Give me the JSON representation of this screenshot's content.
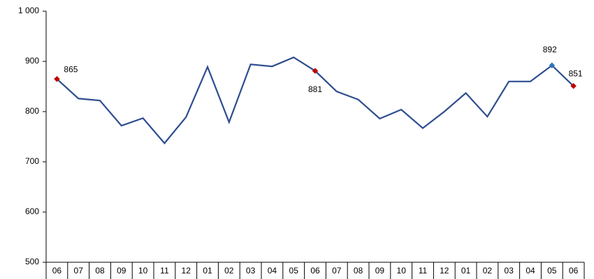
{
  "chart_data": {
    "type": "line",
    "categories": [
      "06",
      "07",
      "08",
      "09",
      "10",
      "11",
      "12",
      "01",
      "02",
      "03",
      "04",
      "05",
      "06",
      "07",
      "08",
      "09",
      "10",
      "11",
      "12",
      "01",
      "02",
      "03",
      "04",
      "05",
      "06"
    ],
    "series": [
      {
        "color": "#2e4d8f",
        "values": [
          865,
          826,
          822,
          772,
          787,
          737,
          789,
          889,
          779,
          894,
          890,
          908,
          881,
          840,
          824,
          786,
          804,
          767,
          800,
          837,
          790,
          860,
          860,
          892,
          851
        ],
        "value_labels": [
          "865",
          null,
          null,
          null,
          null,
          null,
          null,
          null,
          null,
          null,
          null,
          null,
          "881",
          null,
          null,
          null,
          null,
          null,
          null,
          null,
          null,
          null,
          null,
          "892",
          "851"
        ],
        "marker_colors": [
          "#c00000",
          null,
          null,
          null,
          null,
          null,
          null,
          null,
          null,
          null,
          null,
          null,
          "#c00000",
          null,
          null,
          null,
          null,
          null,
          null,
          null,
          null,
          null,
          null,
          "#2e75b6",
          "#c00000"
        ]
      }
    ],
    "ylim": [
      500,
      1000
    ],
    "yticks": [
      500,
      600,
      700,
      800,
      900,
      {
        "value": 1000,
        "label": "1 000"
      }
    ],
    "grid": false
  }
}
